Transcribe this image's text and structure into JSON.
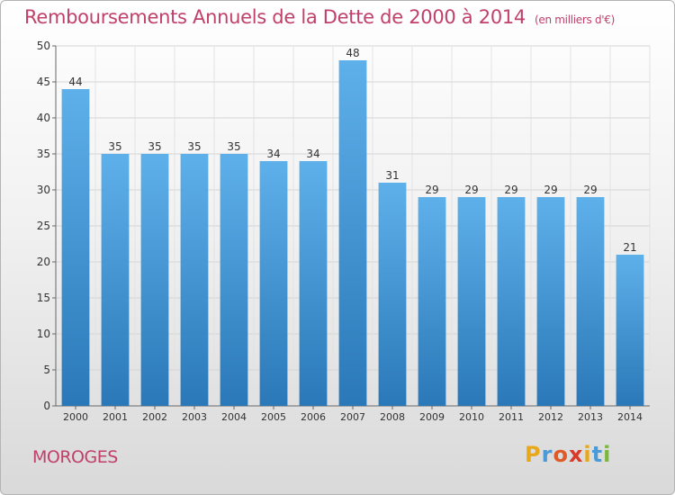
{
  "chart_data": {
    "type": "bar",
    "title": "Remboursements Annuels de la Dette de 2000 à 2014",
    "subtitle": "(en milliers d'€)",
    "categories": [
      "2000",
      "2001",
      "2002",
      "2003",
      "2004",
      "2005",
      "2006",
      "2007",
      "2008",
      "2009",
      "2010",
      "2011",
      "2012",
      "2013",
      "2014"
    ],
    "values": [
      44,
      35,
      35,
      35,
      35,
      34,
      34,
      48,
      31,
      29,
      29,
      29,
      29,
      29,
      21
    ],
    "xlabel": "",
    "ylabel": "",
    "ylim": [
      0,
      50
    ],
    "yticks": [
      0,
      5,
      10,
      15,
      20,
      25,
      30,
      35,
      40,
      45,
      50
    ],
    "grid": true,
    "data_labels": true,
    "bar_color_top": "#5eb0ea",
    "bar_color_bottom": "#2a78b8"
  },
  "place": "MOROGES",
  "logo": {
    "text": "Proxiti",
    "letters": [
      {
        "ch": "P",
        "color": "#e8a818"
      },
      {
        "ch": "r",
        "color": "#4a9ad8"
      },
      {
        "ch": "o",
        "color": "#e05a28"
      },
      {
        "ch": "x",
        "color": "#d83a2a"
      },
      {
        "ch": "i",
        "color": "#e8a818"
      },
      {
        "ch": "t",
        "color": "#4a9ad8"
      },
      {
        "ch": "i",
        "color": "#7ab83a"
      }
    ]
  }
}
